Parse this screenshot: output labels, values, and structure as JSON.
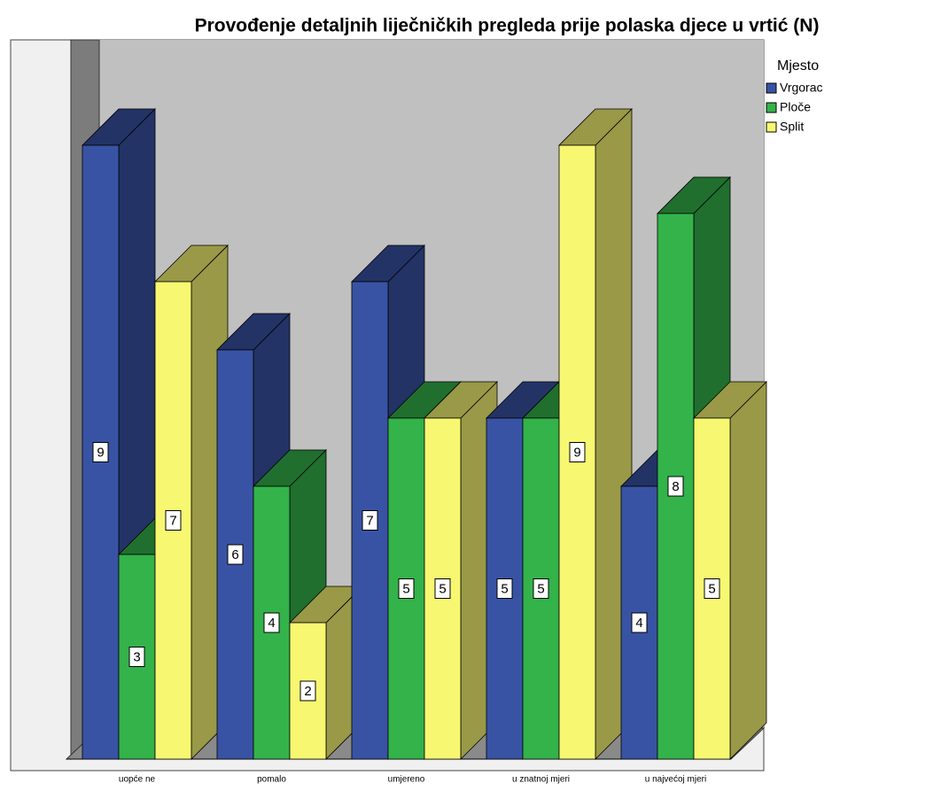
{
  "chart_data": {
    "type": "bar3d",
    "title": "Provođenje detaljnih liječničkih pregleda prije polaska djece u vrtić (N)",
    "legend_title": "Mjesto",
    "categories": [
      "uopće ne",
      "pomalo",
      "umjereno",
      "u znatnoj mjeri",
      "u najvećoj mjeri"
    ],
    "series": [
      {
        "name": "Vrgorac",
        "color": "#3953a4",
        "values": [
          9,
          6,
          7,
          5,
          4
        ]
      },
      {
        "name": "Ploče",
        "color": "#33b34a",
        "values": [
          3,
          4,
          5,
          5,
          8
        ]
      },
      {
        "name": "Split",
        "color": "#f7f772",
        "values": [
          7,
          2,
          5,
          9,
          5
        ]
      }
    ]
  }
}
